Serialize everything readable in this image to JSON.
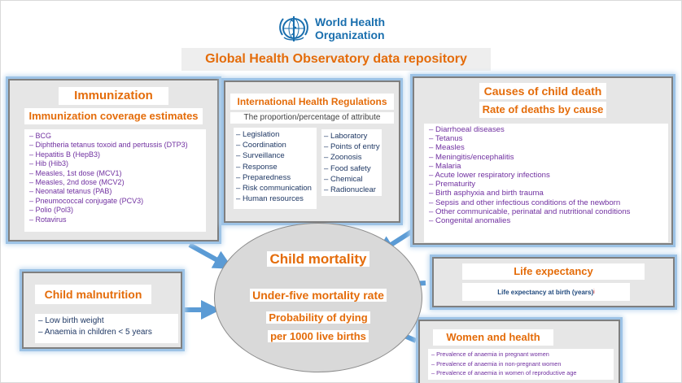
{
  "header": {
    "org_line1": "World Health",
    "org_line2": "Organization",
    "title": "Global Health Observatory data repository"
  },
  "immunization": {
    "title": "Immunization",
    "subtitle": "Immunization coverage estimates",
    "items": [
      "BCG",
      "Diphtheria tetanus toxoid and pertussis (DTP3)",
      "Hepatitis B (HepB3)",
      "Hib (Hib3)",
      "Measles, 1st dose (MCV1)",
      "Measles, 2nd dose (MCV2)",
      "Neonatal tetanus (PAB)",
      "Pneumococcal conjugate (PCV3)",
      "Polio (Pol3)",
      "Rotavirus"
    ]
  },
  "ihr": {
    "title": "International Health Regulations",
    "subtitle": "The proportion/percentage of attribute",
    "left_items": [
      "Legislation",
      "Coordination",
      "Surveillance",
      "Response",
      "Preparedness",
      "Risk communication",
      "Human resources"
    ],
    "right_items": [
      "Laboratory",
      "Points of entry",
      "Zoonosis",
      "Food safety",
      "Chemical",
      "Radionuclear"
    ]
  },
  "causes": {
    "title": "Causes of child death",
    "subtitle": "Rate of deaths by cause",
    "items": [
      "Diarrhoeal diseases",
      "Tetanus",
      "Measles",
      "Meningitis/encephalitis",
      "Malaria",
      "Acute lower respiratory infections",
      "Prematurity",
      "Birth asphyxia and birth trauma",
      "Sepsis and other infectious conditions of the newborn",
      "Other communicable, perinatal and nutritional conditions",
      "Congenital anomalies"
    ]
  },
  "malnutrition": {
    "title": "Child malnutrition",
    "items": [
      "Low birth weight",
      "Anaemia in children < 5 years"
    ]
  },
  "life": {
    "title": "Life expectancy",
    "item": "Life expectancy at birth (years)",
    "mark": "i"
  },
  "women": {
    "title": "Women and health",
    "items": [
      "Prevalence of anaemia in pregnant women",
      "Prevalence of anaemia in non-pregnant women",
      "Prevalence of anaemia in women of reproductive age"
    ]
  },
  "center": {
    "title": "Child mortality",
    "line1": "Under-five mortality rate",
    "line2": "Probability of dying",
    "line3": "per 1000 live births"
  },
  "colors": {
    "accent": "#e46c0a",
    "list_purple": "#7030a0",
    "list_navy": "#1f3864",
    "arrow": "#5b9bd5",
    "who_blue": "#1a6fae"
  },
  "icons": {
    "logo": "who-emblem-icon",
    "arrow": "arrow-icon"
  }
}
